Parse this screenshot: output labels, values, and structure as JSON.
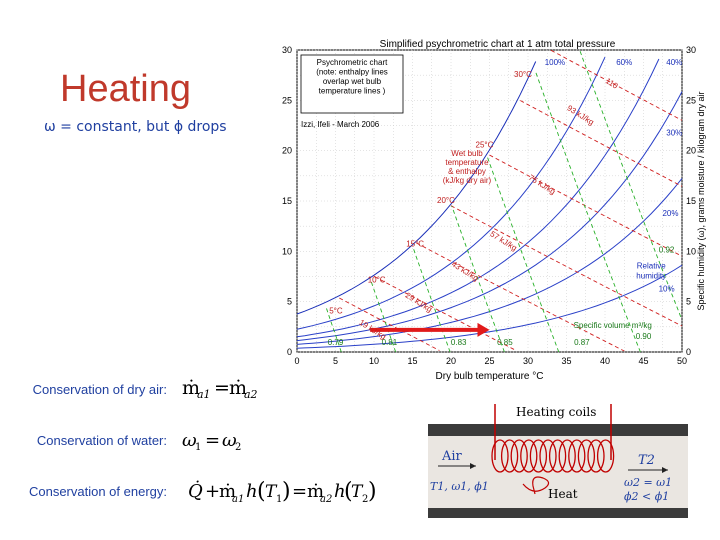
{
  "slide": {
    "title": "Heating",
    "subtitle": "ω = constant, but ϕ drops"
  },
  "equations": [
    {
      "label": "Conservation of dry air:",
      "expr": "ṁa1 = ṁa2"
    },
    {
      "label": "Conservation of water:",
      "expr": "ω1 = ω2"
    },
    {
      "label": "Conservation of energy:",
      "expr": "Q̇ + ṁa1 h(T1) = ṁa2 h(T2)"
    }
  ],
  "chart": {
    "title": "Simplified psychrometric chart at 1 atm total pressure",
    "xlabel": "Dry bulb temperature °C",
    "ylabel": "Specific humidity (ω), grams moisture / kilogram dry air",
    "x_ticks": [
      "0",
      "5",
      "10",
      "15",
      "20",
      "25",
      "30",
      "35",
      "40",
      "45",
      "50"
    ],
    "y_ticks": [
      "0",
      "5",
      "10",
      "15",
      "20",
      "25",
      "30"
    ],
    "note": [
      "Psychrometric chart",
      "(note: enthalpy lines",
      "overlap wet bulb",
      "temperature lines )"
    ],
    "credit": "Izzi, Ifeli - March 2006",
    "wetbulb_label": [
      "Wet bulb",
      "temperature",
      "& enthalpy",
      "(kJ/kg dry air)"
    ],
    "rh_labels": [
      "100%",
      "60%",
      "40%",
      "30%",
      "20%",
      "Relative",
      "humidity",
      "10%"
    ],
    "wetbulb_temps": [
      "5°C",
      "10°C",
      "15°C",
      "20°C",
      "25°C",
      "30°C"
    ],
    "enthalpy_labels": [
      "19 kJ/kg",
      "29 kJ/kg",
      "43 kJ/kg",
      "57 kJ/kg",
      "75 kJ/kg",
      "93 kJ/kg",
      "110"
    ],
    "volume_label": [
      "Specific volume m³/kg",
      "0.90",
      "0.92",
      "0.87",
      "0.85",
      "0.83",
      "0.81",
      "0.79"
    ]
  },
  "chart_data": {
    "type": "line",
    "title": "Simplified psychrometric chart at 1 atm total pressure",
    "xlabel": "Dry bulb temperature °C",
    "ylabel": "Specific humidity (ω), grams moisture / kilogram dry air",
    "xlim": [
      0,
      50
    ],
    "ylim": [
      0,
      30
    ],
    "grid": true,
    "process_arrow": {
      "from": [
        9.5,
        2.2
      ],
      "to": [
        25,
        2.2
      ],
      "color": "#e11a1a"
    }
  },
  "diagram": {
    "title": "Heating coils",
    "air": "Air",
    "inlet": "T1, ω1, ϕ1",
    "heat": "Heat",
    "outlet_t": "T2",
    "outlet_w": "ω2 = ω1",
    "outlet_phi": "ϕ2 < ϕ1"
  }
}
